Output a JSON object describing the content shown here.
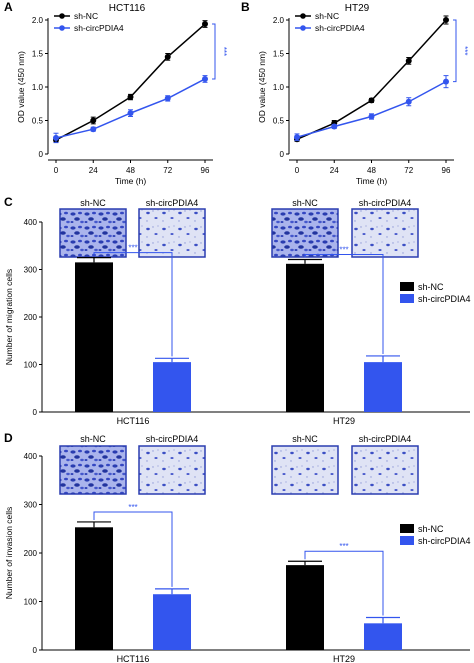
{
  "colors": {
    "black_series": "#000000",
    "blue_series": "#3355ee",
    "axis": "#000000",
    "sig": "#3355ee"
  },
  "panels": {
    "A": {
      "letter": "A",
      "title": "HCT116"
    },
    "B": {
      "letter": "B",
      "title": "HT29"
    },
    "C": {
      "letter": "C"
    },
    "D": {
      "letter": "D"
    }
  },
  "legend": {
    "nc": "sh-NC",
    "circ": "sh-circPDIA4"
  },
  "sig_label": "***",
  "image_labels": {
    "nc": "sh-NC",
    "circ": "sh-circPDIA4"
  },
  "icons": {
    "micrograph_nc": "crystal-violet-stained-cells-dense",
    "micrograph_circ": "crystal-violet-stained-cells-sparse"
  },
  "chart_data": [
    {
      "panel": "A",
      "type": "line",
      "title": "HCT116",
      "xlabel": "Time (h)",
      "ylabel": "OD value (450 nm)",
      "x": [
        0,
        24,
        48,
        72,
        96
      ],
      "ylim": [
        0,
        2.0
      ],
      "yticks": [
        "0",
        "0.5",
        "1.0",
        "1.5",
        "2.0"
      ],
      "xticks": [
        "0",
        "24",
        "48",
        "72",
        "96"
      ],
      "series": [
        {
          "name": "sh-NC",
          "values": [
            0.21,
            0.5,
            0.85,
            1.45,
            1.94
          ],
          "errors": [
            0.03,
            0.05,
            0.04,
            0.05,
            0.05
          ]
        },
        {
          "name": "sh-circPDIA4",
          "values": [
            0.24,
            0.37,
            0.61,
            0.83,
            1.12
          ],
          "errors": [
            0.07,
            0.03,
            0.05,
            0.04,
            0.05
          ]
        }
      ],
      "annotation": "***",
      "legend_position": "top-left"
    },
    {
      "panel": "B",
      "type": "line",
      "title": "HT29",
      "xlabel": "Time (h)",
      "ylabel": "OD value (450 nm)",
      "x": [
        0,
        24,
        48,
        72,
        96
      ],
      "ylim": [
        0,
        2.0
      ],
      "yticks": [
        "0",
        "0.5",
        "1.0",
        "1.5",
        "2.0"
      ],
      "xticks": [
        "0",
        "24",
        "48",
        "72",
        "96"
      ],
      "series": [
        {
          "name": "sh-NC",
          "values": [
            0.22,
            0.46,
            0.8,
            1.39,
            2.0
          ],
          "errors": [
            0.03,
            0.04,
            0.03,
            0.05,
            0.06
          ]
        },
        {
          "name": "sh-circPDIA4",
          "values": [
            0.25,
            0.41,
            0.56,
            0.78,
            1.08
          ],
          "errors": [
            0.05,
            0.03,
            0.04,
            0.06,
            0.09
          ]
        }
      ],
      "annotation": "***",
      "legend_position": "top-left"
    },
    {
      "panel": "C",
      "type": "bar",
      "ylabel": "Number of migration cells",
      "categories": [
        "HCT116",
        "HT29"
      ],
      "ylim": [
        0,
        400
      ],
      "yticks": [
        "0",
        "100",
        "200",
        "300",
        "400"
      ],
      "series": [
        {
          "name": "sh-NC",
          "values": [
            315,
            312
          ],
          "errors": [
            10,
            9
          ]
        },
        {
          "name": "sh-circPDIA4",
          "values": [
            105,
            105
          ],
          "errors": [
            8,
            13
          ]
        }
      ],
      "annotation": "***",
      "legend_position": "right"
    },
    {
      "panel": "D",
      "type": "bar",
      "ylabel": "Number of invasion cells",
      "categories": [
        "HCT116",
        "HT29"
      ],
      "ylim": [
        0,
        400
      ],
      "yticks": [
        "0",
        "100",
        "200",
        "300",
        "400"
      ],
      "series": [
        {
          "name": "sh-NC",
          "values": [
            253,
            175
          ],
          "errors": [
            11,
            8
          ]
        },
        {
          "name": "sh-circPDIA4",
          "values": [
            115,
            55
          ],
          "errors": [
            11,
            12
          ]
        }
      ],
      "annotation": "***",
      "legend_position": "right"
    }
  ]
}
